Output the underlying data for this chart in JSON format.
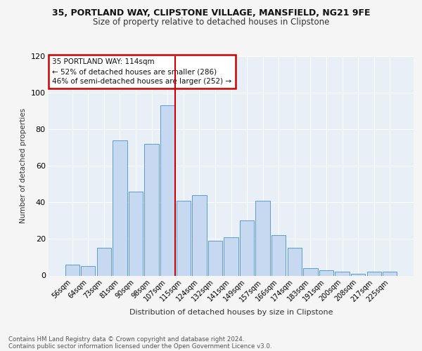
{
  "title_line1": "35, PORTLAND WAY, CLIPSTONE VILLAGE, MANSFIELD, NG21 9FE",
  "title_line2": "Size of property relative to detached houses in Clipstone",
  "xlabel": "Distribution of detached houses by size in Clipstone",
  "ylabel": "Number of detached properties",
  "categories": [
    "56sqm",
    "64sqm",
    "73sqm",
    "81sqm",
    "90sqm",
    "98sqm",
    "107sqm",
    "115sqm",
    "124sqm",
    "132sqm",
    "141sqm",
    "149sqm",
    "157sqm",
    "166sqm",
    "174sqm",
    "183sqm",
    "191sqm",
    "200sqm",
    "208sqm",
    "217sqm",
    "225sqm"
  ],
  "values": [
    6,
    5,
    15,
    74,
    46,
    72,
    93,
    41,
    44,
    19,
    21,
    30,
    41,
    22,
    15,
    4,
    3,
    2,
    1,
    2,
    2
  ],
  "bar_color": "#c6d9f0",
  "bar_edge_color": "#5b9bd5",
  "vline_x_index": 7,
  "vline_color": "#cc0000",
  "annotation_line1": "35 PORTLAND WAY: 114sqm",
  "annotation_line2": "← 52% of detached houses are smaller (286)",
  "annotation_line3": "46% of semi-detached houses are larger (252) →",
  "annotation_box_color": "#cc0000",
  "ylim": [
    0,
    120
  ],
  "yticks": [
    0,
    20,
    40,
    60,
    80,
    100,
    120
  ],
  "footnote_line1": "Contains HM Land Registry data © Crown copyright and database right 2024.",
  "footnote_line2": "Contains public sector information licensed under the Open Government Licence v3.0.",
  "background_color": "#e8eff7",
  "grid_color": "#ffffff",
  "title_fontsize": 9,
  "subtitle_fontsize": 8.5,
  "bar_width": 0.9
}
